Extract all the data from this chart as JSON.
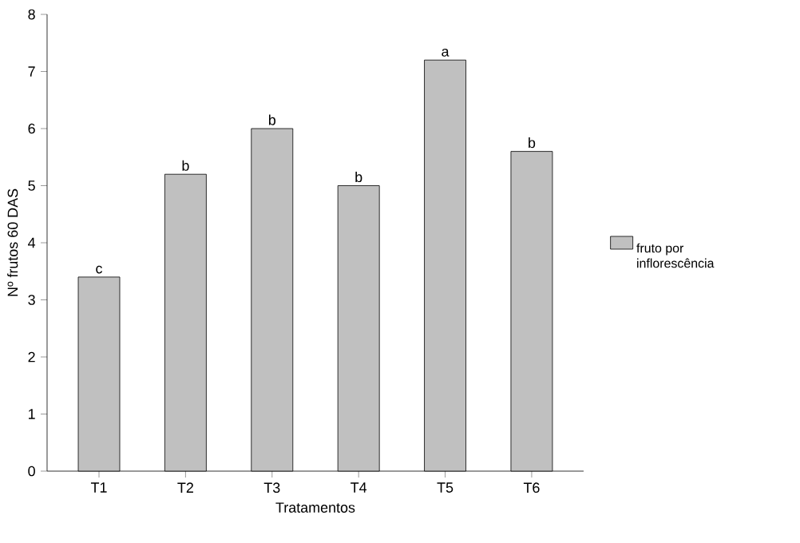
{
  "chart_data": {
    "type": "bar",
    "xlabel": "Tratamentos",
    "ylabel": "Nº frutos 60 DAS",
    "categories": [
      "T1",
      "T2",
      "T3",
      "T4",
      "T5",
      "T6"
    ],
    "series": [
      {
        "name": "fruto por inflorescência",
        "color": "#c0c0c0",
        "values": [
          3.4,
          5.2,
          6.0,
          5.0,
          7.2,
          5.6
        ]
      }
    ],
    "ylim": [
      0,
      8
    ],
    "yticks": [
      0,
      1,
      2,
      3,
      4,
      5,
      6,
      7,
      8
    ],
    "grid": false,
    "legend": "right",
    "annotations": [
      {
        "text": "c",
        "x": "T1",
        "y": 3.4
      },
      {
        "text": "b",
        "x": "T2",
        "y": 5.2
      },
      {
        "text": "b",
        "x": "T3",
        "y": 6.0
      },
      {
        "text": "b",
        "x": "T4",
        "y": 5.0
      },
      {
        "text": "a",
        "x": "T5",
        "y": 7.2
      },
      {
        "text": "b",
        "x": "T6",
        "y": 5.6
      }
    ]
  }
}
